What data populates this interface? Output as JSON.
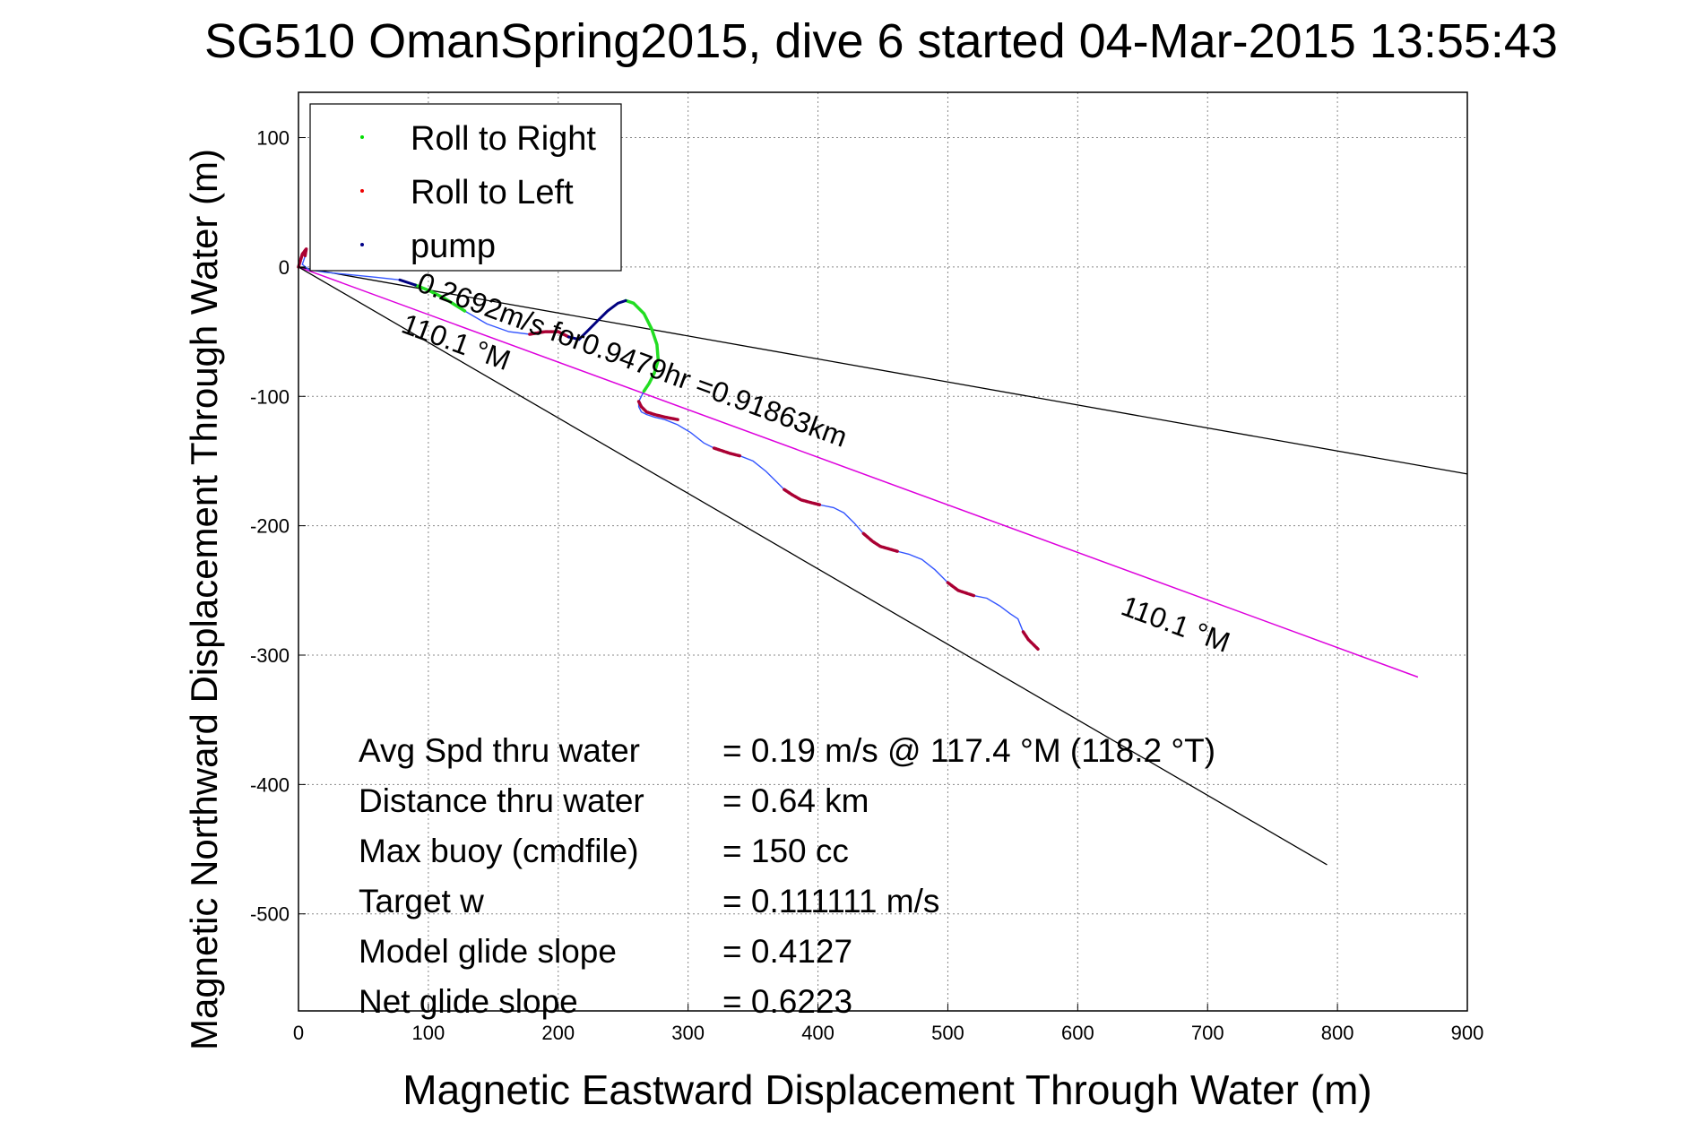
{
  "chart_data": {
    "type": "line",
    "title": "SG510 OmanSpring2015, dive 6 started 04-Mar-2015 13:55:43",
    "xlabel": "Magnetic Eastward Displacement Through Water (m)",
    "ylabel": "Magnetic Northward Displacement Through Water (m)",
    "xlim": [
      0,
      900
    ],
    "ylim": [
      -575,
      135
    ],
    "xticks": [
      0,
      100,
      200,
      300,
      400,
      500,
      600,
      700,
      800,
      900
    ],
    "yticks": [
      100,
      0,
      -100,
      -200,
      -300,
      -400,
      -500
    ],
    "grid": true,
    "legend_position": "top-left",
    "legend": [
      {
        "label": "Roll to Right",
        "color": "#00dd00"
      },
      {
        "label": "Roll to Left",
        "color": "#ee0000"
      },
      {
        "label": "pump",
        "color": "#000088"
      }
    ],
    "colors": {
      "track": "#3355ff",
      "roll_left": "#aa0033",
      "roll_right": "#22dd22",
      "pump": "#000080",
      "heading_line": "#dd00dd",
      "reference_lines": "#000000"
    },
    "series": [
      {
        "kind": "track",
        "x": [
          0,
          3,
          6,
          5,
          3,
          8,
          20,
          40,
          60,
          78,
          90,
          100,
          112,
          128,
          145,
          162,
          178,
          190,
          200,
          208,
          216,
          222,
          230,
          238,
          246,
          252,
          258,
          266,
          272,
          276,
          277,
          274,
          270,
          266,
          264,
          262,
          262,
          264,
          268,
          274,
          282,
          292,
          302,
          312,
          320,
          326,
          332,
          340,
          350,
          360,
          368,
          374,
          380,
          387,
          394,
          402,
          412,
          420,
          428,
          435,
          442,
          448,
          455,
          462,
          470,
          480,
          490,
          500,
          508,
          514,
          520,
          530,
          540,
          548,
          554,
          558,
          562,
          566,
          570
        ],
        "y": [
          0,
          10,
          14,
          8,
          2,
          -2,
          -4,
          -6,
          -8,
          -10,
          -14,
          -18,
          -24,
          -34,
          -44,
          -50,
          -52,
          -50,
          -50,
          -54,
          -56,
          -50,
          -42,
          -34,
          -28,
          -26,
          -28,
          -36,
          -48,
          -60,
          -72,
          -82,
          -90,
          -96,
          -100,
          -104,
          -108,
          -112,
          -114,
          -116,
          -118,
          -122,
          -128,
          -136,
          -140,
          -142,
          -144,
          -146,
          -150,
          -158,
          -166,
          -172,
          -176,
          -180,
          -182,
          -184,
          -186,
          -190,
          -198,
          -206,
          -212,
          -216,
          -218,
          -220,
          -222,
          -226,
          -234,
          -244,
          -250,
          -252,
          -254,
          -256,
          -262,
          -268,
          -272,
          -282,
          -288,
          -292,
          -296
        ]
      },
      {
        "kind": "roll_left",
        "segments": [
          {
            "x": [
              0,
              3,
              6,
              5
            ],
            "y": [
              0,
              10,
              14,
              8
            ]
          },
          {
            "x": [
              178,
              190,
              200,
              208
            ],
            "y": [
              -52,
              -50,
              -50,
              -54
            ]
          },
          {
            "x": [
              262,
              264,
              268,
              274,
              282,
              292
            ],
            "y": [
              -104,
              -108,
              -112,
              -114,
              -116,
              -118
            ]
          },
          {
            "x": [
              320,
              326,
              332,
              340
            ],
            "y": [
              -140,
              -142,
              -144,
              -146
            ]
          },
          {
            "x": [
              374,
              380,
              387,
              394,
              402
            ],
            "y": [
              -172,
              -176,
              -180,
              -182,
              -184
            ]
          },
          {
            "x": [
              435,
              442,
              448,
              455,
              462
            ],
            "y": [
              -206,
              -212,
              -216,
              -218,
              -220
            ]
          },
          {
            "x": [
              500,
              508,
              514,
              520
            ],
            "y": [
              -244,
              -250,
              -252,
              -254
            ]
          },
          {
            "x": [
              558,
              562,
              566,
              570
            ],
            "y": [
              -282,
              -288,
              -292,
              -296
            ]
          }
        ]
      },
      {
        "kind": "roll_right",
        "segments": [
          {
            "x": [
              90,
              100,
              112,
              128
            ],
            "y": [
              -14,
              -18,
              -24,
              -34
            ]
          },
          {
            "x": [
              252,
              258,
              266,
              272,
              276,
              277,
              274,
              270,
              266
            ],
            "y": [
              -26,
              -28,
              -36,
              -48,
              -60,
              -72,
              -82,
              -90,
              -96
            ]
          }
        ]
      },
      {
        "kind": "pump",
        "segments": [
          {
            "x": [
              78,
              90
            ],
            "y": [
              -10,
              -14
            ]
          },
          {
            "x": [
              208,
              216,
              222,
              230,
              238,
              246,
              252
            ],
            "y": [
              -54,
              -56,
              -50,
              -42,
              -34,
              -28,
              -26
            ]
          }
        ]
      },
      {
        "kind": "heading_line",
        "x": [
          0,
          862
        ],
        "y": [
          0,
          -317
        ]
      },
      {
        "kind": "reference_lines",
        "lines": [
          {
            "x": [
              0,
              900
            ],
            "y": [
              0,
              -160
            ]
          },
          {
            "x": [
              0,
              792
            ],
            "y": [
              0,
              -462
            ]
          }
        ]
      }
    ],
    "annotations": [
      {
        "text": "0.2692m/s for0.9479hr =0.91863km",
        "x": 90,
        "y": -18,
        "rotate": 20.2
      },
      {
        "text": "110.1 °M",
        "x": 78,
        "y": -50,
        "rotate": 20.2
      },
      {
        "text": "110.1 °M",
        "x": 632,
        "y": -268,
        "rotate": 20.2
      }
    ],
    "info_rows": [
      {
        "label": "Avg Spd thru water",
        "value": "=  0.19 m/s @ 117.4 °M (118.2 °T)"
      },
      {
        "label": "Distance thru water",
        "value": "=  0.64 km"
      },
      {
        "label": "Max buoy (cmdfile)",
        "value": "= 150 cc"
      },
      {
        "label": "Target w",
        "value": "= 0.111111 m/s"
      },
      {
        "label": "Model glide slope",
        "value": "= 0.4127"
      },
      {
        "label": "Net glide slope",
        "value": "= 0.6223"
      }
    ]
  }
}
